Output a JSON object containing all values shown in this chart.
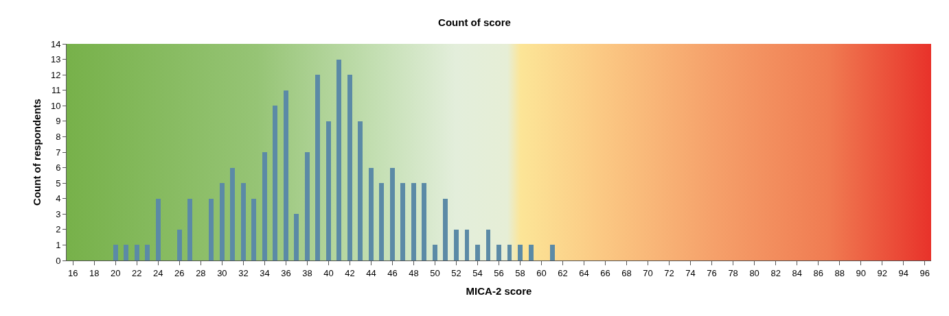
{
  "chart_data": {
    "type": "bar",
    "title": "Count of score",
    "xlabel": "MICA-2 score",
    "ylabel": "Count of respondents",
    "x": [
      20,
      21,
      22,
      23,
      24,
      25,
      26,
      27,
      28,
      29,
      30,
      31,
      32,
      33,
      34,
      35,
      36,
      37,
      38,
      39,
      40,
      41,
      42,
      43,
      44,
      45,
      46,
      47,
      48,
      49,
      50,
      51,
      52,
      53,
      54,
      55,
      56,
      57,
      58,
      59,
      60,
      61
    ],
    "values": [
      1,
      1,
      1,
      1,
      4,
      0,
      2,
      4,
      0,
      4,
      5,
      6,
      5,
      4,
      7,
      10,
      11,
      3,
      7,
      12,
      9,
      13,
      12,
      9,
      6,
      5,
      6,
      5,
      5,
      5,
      1,
      4,
      2,
      2,
      1,
      2,
      1,
      1,
      1,
      1,
      0,
      1
    ],
    "color": "#5b8aa6",
    "xlim": [
      15.4,
      96.6
    ],
    "xticks": [
      16,
      18,
      20,
      22,
      24,
      26,
      28,
      30,
      32,
      34,
      36,
      38,
      40,
      42,
      44,
      46,
      48,
      50,
      52,
      54,
      56,
      58,
      60,
      62,
      64,
      66,
      68,
      70,
      72,
      74,
      76,
      78,
      80,
      82,
      84,
      86,
      88,
      90,
      92,
      94,
      96
    ],
    "yticks": [
      0,
      1,
      2,
      3,
      4,
      5,
      6,
      7,
      8,
      9,
      10,
      11,
      12,
      13,
      14
    ],
    "ylim": [
      0,
      14
    ]
  }
}
